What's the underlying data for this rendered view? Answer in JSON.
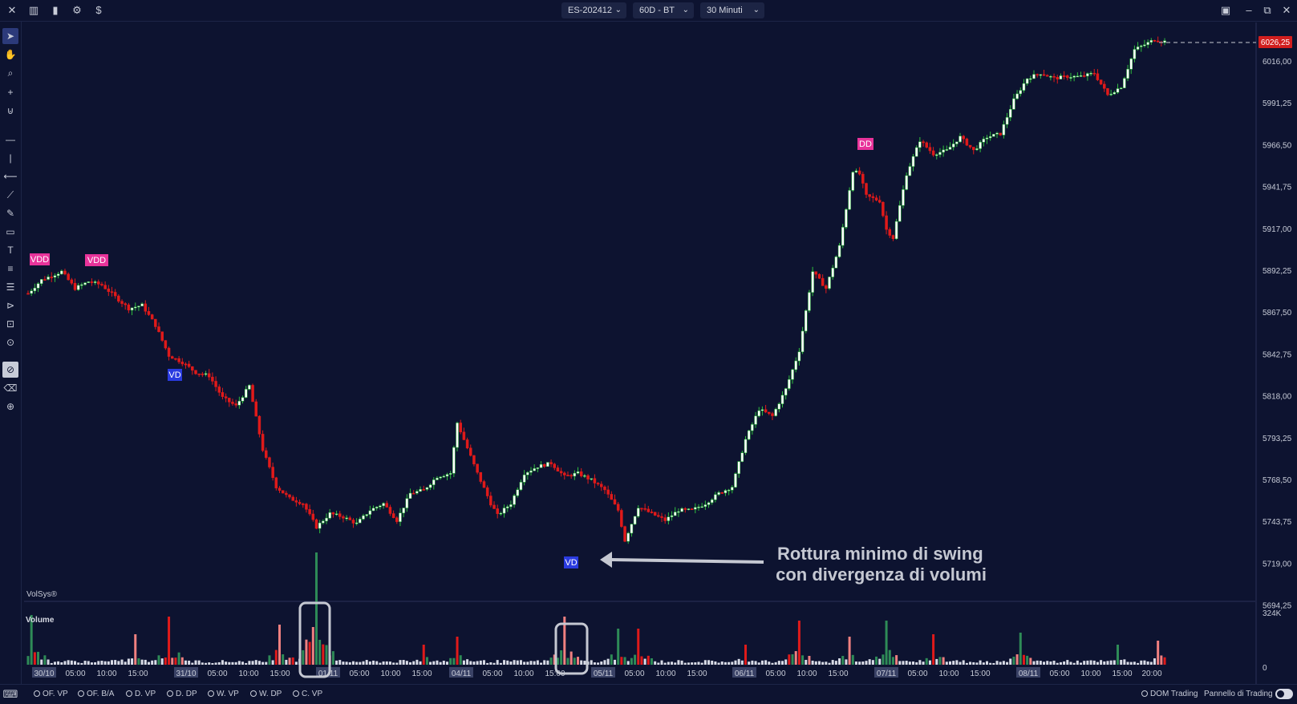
{
  "toolbar": {
    "instrument": "ES-202412",
    "range": "60D - BT",
    "timeframe": "30 Minuti",
    "left_icons": [
      "close-icon",
      "layout-icon",
      "chart-type-icon",
      "settings-icon",
      "dollar-icon"
    ],
    "right_icons": [
      "fullscreen-icon",
      "minimize-icon",
      "restore-icon",
      "close-icon"
    ]
  },
  "tools": [
    "cursor-icon",
    "hand-icon",
    "zoom-icon",
    "crosshair-icon",
    "magnet-icon",
    "horizontal-line-icon",
    "vertical-line-icon",
    "ray-icon",
    "trendline-icon",
    "ruler-icon",
    "rectangle-icon",
    "text-icon",
    "lines-icon",
    "fibonacci-icon",
    "pitchfork-icon",
    "measure-icon",
    "sync-icon",
    "lock-icon",
    "eraser-icon",
    "add-tool-icon"
  ],
  "price_axis": {
    "labels": [
      "6016,00",
      "5991,25",
      "5966,50",
      "5941,75",
      "5917,00",
      "5892,25",
      "5867,50",
      "5842,75",
      "5818,00",
      "5793,25",
      "5768,50",
      "5743,75",
      "5719,00",
      "5694,25"
    ],
    "last_price": "6026,25",
    "last_price_color": "#d11e1e"
  },
  "volume_axis": {
    "max_label": "324K",
    "min_label": "0"
  },
  "time_axis": [
    "30/10",
    "05:00",
    "10:00",
    "15:00",
    "31/10",
    "05:00",
    "10:00",
    "15:00",
    "01/11",
    "05:00",
    "10:00",
    "15:00",
    "04/11",
    "05:00",
    "10:00",
    "15:00",
    "05/11",
    "05:00",
    "10:00",
    "15:00",
    "06/11",
    "05:00",
    "10:00",
    "15:00",
    "07/11",
    "05:00",
    "10:00",
    "15:00",
    "08/11",
    "05:00",
    "10:00",
    "15:00",
    "20:00"
  ],
  "panels": {
    "indicator_name": "VolSys®",
    "volume_title": "Volume"
  },
  "signals": [
    {
      "label": "VDD",
      "color": "#e8339a"
    },
    {
      "label": "VDD",
      "color": "#e8339a"
    },
    {
      "label": "VD",
      "color": "#2a3be0"
    },
    {
      "label": "VD",
      "color": "#2a3be0"
    },
    {
      "label": "DD",
      "color": "#e8339a"
    }
  ],
  "annotation": {
    "line1": "Rottura minimo di swing",
    "line2": " con divergenza di volumi"
  },
  "bottom_indicators": [
    "OF. VP",
    "OF. B/A",
    "D. VP",
    "D. DP",
    "W. VP",
    "W. DP",
    "C. VP"
  ],
  "bottom_right": {
    "dom": "DOM Trading",
    "panel": "Pannello di Trading"
  },
  "colors": {
    "background": "#0d1330",
    "bull": "#2fbf3e",
    "bear": "#e01a1a",
    "text": "#c8ccd8"
  },
  "chart_data": {
    "type": "candlestick",
    "ylim": [
      5694.25,
      6030
    ],
    "path_points": [
      [
        0,
        5877
      ],
      [
        4,
        5885
      ],
      [
        10,
        5890
      ],
      [
        14,
        5880
      ],
      [
        18,
        5884
      ],
      [
        22,
        5882
      ],
      [
        26,
        5875
      ],
      [
        30,
        5868
      ],
      [
        34,
        5870
      ],
      [
        38,
        5858
      ],
      [
        42,
        5840
      ],
      [
        46,
        5836
      ],
      [
        50,
        5830
      ],
      [
        54,
        5828
      ],
      [
        58,
        5815
      ],
      [
        62,
        5810
      ],
      [
        66,
        5822
      ],
      [
        70,
        5784
      ],
      [
        74,
        5762
      ],
      [
        78,
        5755
      ],
      [
        82,
        5752
      ],
      [
        86,
        5738
      ],
      [
        90,
        5746
      ],
      [
        94,
        5744
      ],
      [
        98,
        5740
      ],
      [
        102,
        5748
      ],
      [
        106,
        5752
      ],
      [
        110,
        5742
      ],
      [
        114,
        5758
      ],
      [
        118,
        5760
      ],
      [
        122,
        5768
      ],
      [
        126,
        5770
      ],
      [
        128,
        5800
      ],
      [
        130,
        5790
      ],
      [
        134,
        5770
      ],
      [
        138,
        5752
      ],
      [
        140,
        5745
      ],
      [
        144,
        5752
      ],
      [
        148,
        5770
      ],
      [
        152,
        5774
      ],
      [
        156,
        5776
      ],
      [
        160,
        5768
      ],
      [
        164,
        5770
      ],
      [
        168,
        5766
      ],
      [
        172,
        5760
      ],
      [
        176,
        5748
      ],
      [
        178,
        5730
      ],
      [
        182,
        5750
      ],
      [
        186,
        5746
      ],
      [
        190,
        5742
      ],
      [
        194,
        5748
      ],
      [
        198,
        5748
      ],
      [
        202,
        5752
      ],
      [
        206,
        5758
      ],
      [
        210,
        5762
      ],
      [
        214,
        5790
      ],
      [
        218,
        5808
      ],
      [
        222,
        5804
      ],
      [
        226,
        5820
      ],
      [
        230,
        5843
      ],
      [
        234,
        5890
      ],
      [
        238,
        5880
      ],
      [
        242,
        5905
      ],
      [
        246,
        5950
      ],
      [
        248,
        5948
      ],
      [
        250,
        5935
      ],
      [
        254,
        5932
      ],
      [
        256,
        5915
      ],
      [
        258,
        5910
      ],
      [
        262,
        5948
      ],
      [
        266,
        5968
      ],
      [
        270,
        5960
      ],
      [
        274,
        5962
      ],
      [
        278,
        5970
      ],
      [
        282,
        5962
      ],
      [
        286,
        5970
      ],
      [
        290,
        5972
      ],
      [
        294,
        5992
      ],
      [
        298,
        6005
      ],
      [
        302,
        6008
      ],
      [
        306,
        6005
      ],
      [
        310,
        6006
      ],
      [
        314,
        6006
      ],
      [
        318,
        6008
      ],
      [
        322,
        5995
      ],
      [
        326,
        6000
      ],
      [
        330,
        6022
      ],
      [
        334,
        6026
      ],
      [
        336,
        6028
      ],
      [
        338,
        6027
      ]
    ],
    "volume_spikes": [
      [
        1,
        62
      ],
      [
        32,
        38
      ],
      [
        42,
        60
      ],
      [
        75,
        50
      ],
      [
        86,
        140
      ],
      [
        118,
        25
      ],
      [
        128,
        35
      ],
      [
        160,
        60
      ],
      [
        176,
        45
      ],
      [
        182,
        45
      ],
      [
        214,
        25
      ],
      [
        230,
        55
      ],
      [
        245,
        35
      ],
      [
        256,
        55
      ],
      [
        270,
        38
      ],
      [
        296,
        40
      ],
      [
        325,
        25
      ],
      [
        337,
        30
      ]
    ]
  }
}
